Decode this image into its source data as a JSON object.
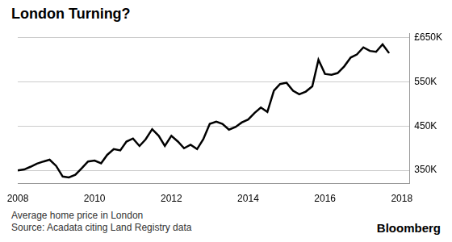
{
  "chart_data": {
    "type": "line",
    "title": "London Turning?",
    "caption": "Average home price in London",
    "source": "Source: Acadata citing Land Registry data",
    "credit": "Bloomberg",
    "x": [
      2008,
      2008.17,
      2008.33,
      2008.5,
      2008.67,
      2008.83,
      2009,
      2009.17,
      2009.33,
      2009.5,
      2009.67,
      2009.83,
      2010,
      2010.17,
      2010.33,
      2010.5,
      2010.67,
      2010.83,
      2011,
      2011.17,
      2011.33,
      2011.5,
      2011.67,
      2011.83,
      2012,
      2012.17,
      2012.33,
      2012.5,
      2012.67,
      2012.83,
      2013,
      2013.17,
      2013.33,
      2013.5,
      2013.67,
      2013.83,
      2014,
      2014.17,
      2014.33,
      2014.5,
      2014.67,
      2014.83,
      2015,
      2015.17,
      2015.33,
      2015.5,
      2015.67,
      2015.83,
      2016,
      2016.17,
      2016.33,
      2016.5,
      2016.67,
      2016.83,
      2017,
      2017.17,
      2017.33,
      2017.5,
      2017.67
    ],
    "values": [
      350000,
      352000,
      358000,
      365000,
      370000,
      374000,
      360000,
      336000,
      334000,
      340000,
      355000,
      370000,
      372000,
      366000,
      385000,
      398000,
      395000,
      415000,
      422000,
      405000,
      420000,
      443000,
      428000,
      405000,
      428000,
      415000,
      400000,
      408000,
      398000,
      420000,
      455000,
      460000,
      455000,
      442000,
      448000,
      458000,
      465000,
      480000,
      492000,
      482000,
      530000,
      545000,
      548000,
      530000,
      522000,
      528000,
      540000,
      600000,
      568000,
      566000,
      570000,
      585000,
      605000,
      612000,
      628000,
      620000,
      618000,
      635000,
      615000
    ],
    "color": "#000000",
    "marker": "none",
    "line_style": "solid",
    "xlim": [
      2008,
      2018.2
    ],
    "xticks": [
      2008,
      2010,
      2012,
      2014,
      2016,
      2018
    ],
    "ylim": [
      320000,
      660000
    ],
    "yticks": [
      {
        "value": 350000,
        "label": "350K"
      },
      {
        "value": 450000,
        "label": "450K"
      },
      {
        "value": 550000,
        "label": "550K"
      },
      {
        "value": 650000,
        "label": "£650K"
      }
    ],
    "grid": true
  }
}
